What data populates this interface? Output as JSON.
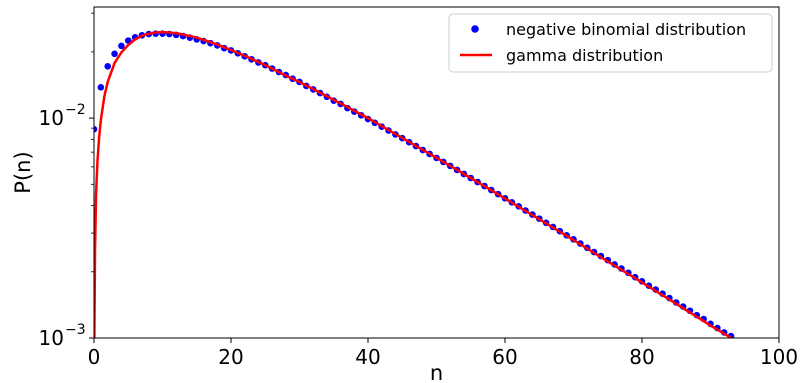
{
  "chart_data": {
    "type": "scatter",
    "title": "",
    "xlabel": "n",
    "ylabel": "P(n)",
    "xlim": [
      0,
      100
    ],
    "ylim": [
      0.001,
      0.032
    ],
    "yscale": "log",
    "grid": false,
    "legend_position": "top-right",
    "x_ticks": [
      {
        "value": 0,
        "label": "0"
      },
      {
        "value": 20,
        "label": "20"
      },
      {
        "value": 40,
        "label": "40"
      },
      {
        "value": 60,
        "label": "60"
      },
      {
        "value": 80,
        "label": "80"
      },
      {
        "value": 100,
        "label": "100"
      }
    ],
    "y_ticks": [
      {
        "value": 0.001,
        "base": "10",
        "exponent": "−3"
      },
      {
        "value": 0.01,
        "base": "10",
        "exponent": "−2"
      }
    ],
    "series": [
      {
        "name": "negative binomial distribution",
        "kind": "markers",
        "color": "#0000ff",
        "x": [
          0,
          1,
          2,
          3,
          4,
          5,
          6,
          7,
          8,
          9,
          10,
          11,
          12,
          13,
          14,
          15,
          16,
          17,
          18,
          19,
          20,
          21,
          22,
          23,
          24,
          25,
          26,
          27,
          28,
          29,
          30,
          31,
          32,
          33,
          34,
          35,
          36,
          37,
          38,
          39,
          40,
          41,
          42,
          43,
          44,
          45,
          46,
          47,
          48,
          49,
          50,
          51,
          52,
          53,
          54,
          55,
          56,
          57,
          58,
          59,
          60,
          61,
          62,
          63,
          64,
          65,
          66,
          67,
          68,
          69,
          70,
          71,
          72,
          73,
          74,
          75,
          76,
          77,
          78,
          79,
          80,
          81,
          82,
          83,
          84,
          85,
          86,
          87,
          88,
          89,
          90,
          91,
          92,
          93,
          94
        ],
        "y": [
          0.0089,
          0.0138,
          0.0172,
          0.0196,
          0.0213,
          0.0225,
          0.0233,
          0.0238,
          0.0241,
          0.0242,
          0.0242,
          0.0241,
          0.0239,
          0.0236,
          0.0232,
          0.0228,
          0.0224,
          0.0219,
          0.0214,
          0.0208,
          0.0203,
          0.0197,
          0.0191,
          0.0185,
          0.0179,
          0.0174,
          0.0168,
          0.0162,
          0.0157,
          0.0151,
          0.0146,
          0.014,
          0.0135,
          0.013,
          0.0125,
          0.012,
          0.0116,
          0.0111,
          0.0107,
          0.0103,
          0.0099,
          0.00952,
          0.00914,
          0.00878,
          0.00843,
          0.0081,
          0.00777,
          0.00746,
          0.00716,
          0.00687,
          0.00659,
          0.00632,
          0.00606,
          0.00581,
          0.00557,
          0.00534,
          0.00512,
          0.00491,
          0.00471,
          0.00451,
          0.00432,
          0.00414,
          0.00397,
          0.0038,
          0.00364,
          0.00349,
          0.00334,
          0.0032,
          0.00306,
          0.00293,
          0.00281,
          0.00269,
          0.00257,
          0.00246,
          0.00236,
          0.00226,
          0.00216,
          0.00207,
          0.00198,
          0.00189,
          0.00181,
          0.00173,
          0.00166,
          0.00159,
          0.00152,
          0.00145,
          0.00139,
          0.00133,
          0.00127,
          0.00122,
          0.00116,
          0.00111,
          0.00106,
          0.00102,
          0.00097
        ]
      },
      {
        "name": "gamma distribution",
        "kind": "line",
        "color": "#ff0000",
        "x": [
          0.05,
          0.15,
          0.3,
          0.5,
          0.75,
          1,
          1.5,
          2,
          3,
          4,
          5,
          6,
          7,
          8,
          9,
          10,
          11,
          12,
          13,
          14,
          15,
          16,
          18,
          20,
          22,
          25,
          28,
          30,
          35,
          40,
          45,
          50,
          55,
          60,
          65,
          70,
          75,
          80,
          85,
          90,
          94.5
        ],
        "y": [
          0.001,
          0.0025,
          0.0045,
          0.0063,
          0.0082,
          0.0098,
          0.0125,
          0.0146,
          0.0178,
          0.0199,
          0.0215,
          0.0228,
          0.0237,
          0.0242,
          0.0245,
          0.0246,
          0.0245,
          0.0243,
          0.024,
          0.0236,
          0.0232,
          0.0227,
          0.0216,
          0.0204,
          0.0192,
          0.0174,
          0.0156,
          0.0146,
          0.0121,
          0.01,
          0.00812,
          0.0066,
          0.00534,
          0.00431,
          0.00347,
          0.00279,
          0.00223,
          0.00179,
          0.00143,
          0.00114,
          0.00094
        ]
      }
    ]
  }
}
